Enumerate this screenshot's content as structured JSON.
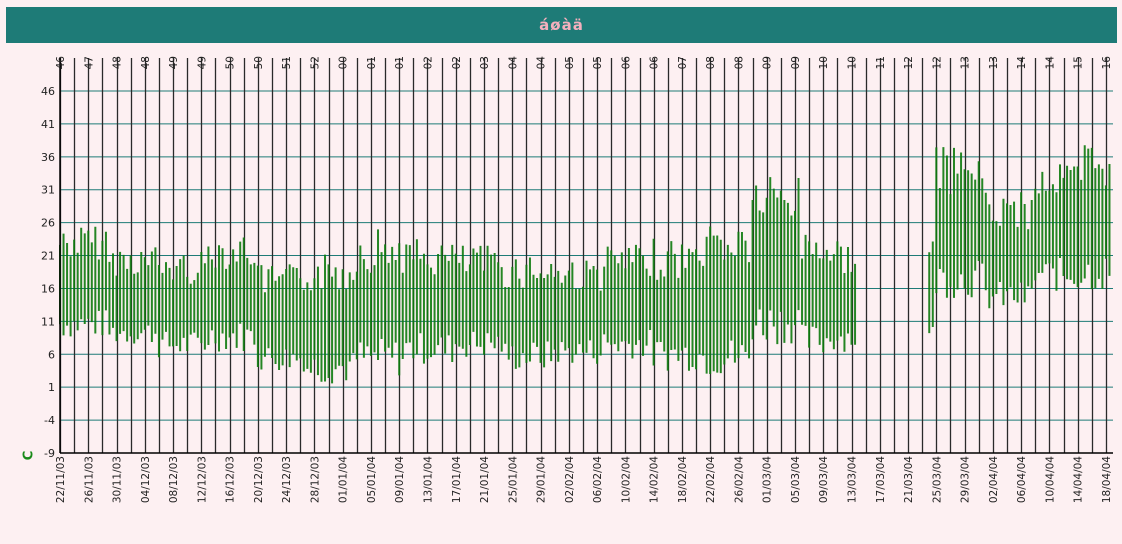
{
  "header": {
    "title": "áøàä"
  },
  "y_unit": "C",
  "colors": {
    "header_bg": "#1e7b77",
    "title": "#f4b0be",
    "series": "#0d7a0d",
    "grid_v": "#2a2a2a",
    "grid_h": "#1e7b77",
    "background": "#fdf0f2"
  },
  "chart_data": {
    "type": "area",
    "title": "áøàä",
    "ylabel": "C",
    "xlabel": "",
    "ylim": [
      -9,
      46
    ],
    "yticks": [
      46,
      41,
      36,
      31,
      26,
      21,
      16,
      11,
      6,
      1,
      -4,
      -9
    ],
    "x_range": [
      "22/11/03",
      "19/04/04"
    ],
    "x_tick_labels": [
      "22/11/03",
      "26/11/03",
      "30/11/03",
      "04/12/03",
      "08/12/03",
      "12/12/03",
      "16/12/03",
      "20/12/03",
      "24/12/03",
      "28/12/03",
      "01/01/04",
      "05/01/04",
      "09/01/04",
      "13/01/04",
      "17/01/04",
      "21/01/04",
      "25/01/04",
      "29/01/04",
      "02/02/04",
      "06/02/04",
      "10/02/04",
      "14/02/04",
      "18/02/04",
      "22/02/04",
      "26/02/04",
      "01/03/04",
      "05/03/04",
      "09/03/04",
      "13/03/04",
      "17/03/04",
      "21/03/04",
      "25/03/04",
      "29/03/04",
      "02/04/04",
      "06/04/04",
      "10/04/04",
      "14/04/04",
      "18/04/04"
    ],
    "week_labels": [
      "46",
      "47",
      "48",
      "48",
      "49",
      "49",
      "50",
      "50",
      "51",
      "52",
      "00",
      "01",
      "01",
      "02",
      "02",
      "03",
      "04",
      "04",
      "05",
      "05",
      "06",
      "06",
      "07",
      "08",
      "08",
      "09",
      "09",
      "10",
      "10",
      "11",
      "12",
      "12",
      "13",
      "13",
      "14",
      "14",
      "15",
      "16"
    ],
    "grid": true,
    "legend": "none",
    "series": [
      {
        "ranges_by_week": [
          {
            "start": "22/11/03",
            "min": 8,
            "max": 26
          },
          {
            "start": "29/11/03",
            "min": 7,
            "max": 23
          },
          {
            "start": "06/12/03",
            "min": 5,
            "max": 22
          },
          {
            "start": "13/12/03",
            "min": 6,
            "max": 25
          },
          {
            "start": "20/12/03",
            "min": 3,
            "max": 20
          },
          {
            "start": "27/12/03",
            "min": 1,
            "max": 22
          },
          {
            "start": "03/01/04",
            "min": 2,
            "max": 26
          },
          {
            "start": "10/01/04",
            "min": 4,
            "max": 24
          },
          {
            "start": "17/01/04",
            "min": 5,
            "max": 23
          },
          {
            "start": "24/01/04",
            "min": 3,
            "max": 22
          },
          {
            "start": "31/01/04",
            "min": 4,
            "max": 21
          },
          {
            "start": "07/02/04",
            "min": 5,
            "max": 23
          },
          {
            "start": "14/02/04",
            "min": 3,
            "max": 24
          },
          {
            "start": "21/02/04",
            "min": 2,
            "max": 27
          },
          {
            "start": "28/02/04",
            "min": 7,
            "max": 34
          },
          {
            "start": "06/03/04",
            "min": 5,
            "max": 26
          },
          {
            "start": "10/03/04",
            "min": 6,
            "max": 24
          },
          {
            "start": "25/03/04",
            "min": 14,
            "max": 38
          },
          {
            "start": "01/04/04",
            "min": 12,
            "max": 31
          },
          {
            "start": "08/04/04",
            "min": 15,
            "max": 36
          },
          {
            "start": "15/04/04",
            "min": 15,
            "max": 39
          }
        ],
        "gap": [
          "14/03/04",
          "24/03/04"
        ]
      }
    ]
  }
}
